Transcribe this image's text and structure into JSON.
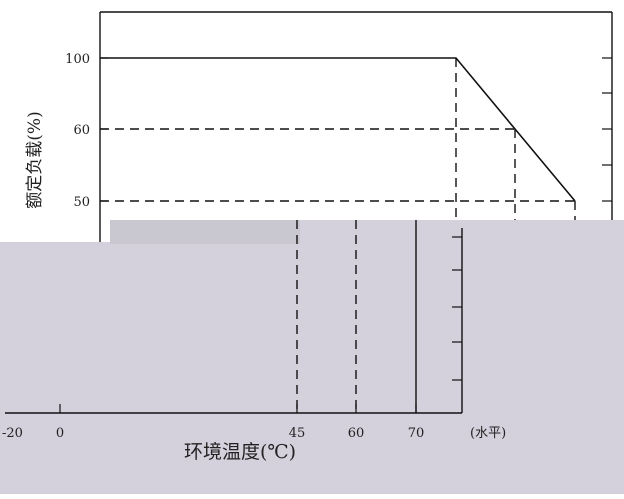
{
  "chart_data": {
    "type": "line",
    "title": "",
    "xlabel": "环境温度(℃)",
    "ylabel": "额定负载(%)",
    "x_ticks": [
      "-20",
      "0",
      "45",
      "60",
      "70",
      "(水平)"
    ],
    "y_ticks": [
      "100",
      "60",
      "50"
    ],
    "xlim": [
      -20,
      70
    ],
    "ylim": [
      0,
      100
    ],
    "series": [
      {
        "x": [
          -20,
          45,
          60,
          70
        ],
        "y": [
          100,
          100,
          60,
          50
        ]
      }
    ],
    "reference_lines": {
      "horizontal_y": [
        60,
        50
      ],
      "vertical_x": [
        45,
        60,
        70
      ]
    },
    "grid": false,
    "legend": "none"
  },
  "colors": {
    "line": "#111111",
    "text": "#222222",
    "overlay": "#d4d0dc",
    "background": "#ffffff"
  }
}
